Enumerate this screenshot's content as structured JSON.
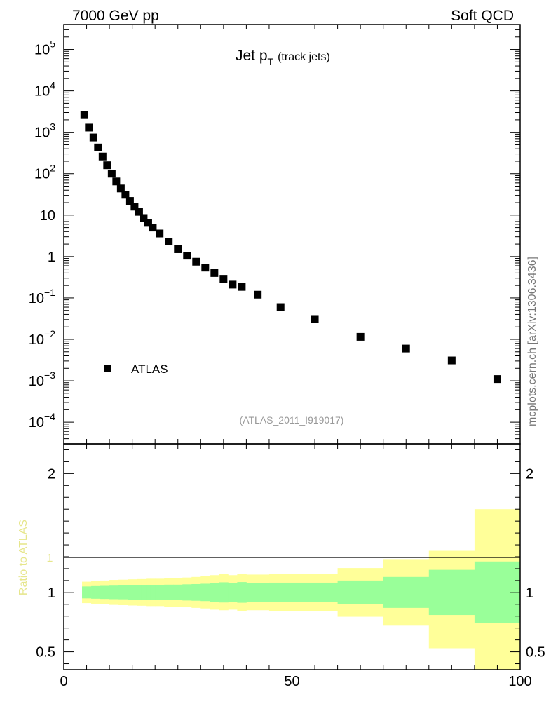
{
  "header": {
    "left_title": "7000 GeV pp",
    "right_title": "Soft QCD"
  },
  "main_panel": {
    "title_main": "Jet p",
    "title_sub": "T",
    "title_paren": "(track jets)",
    "analysis_id": "(ATLAS_2011_I919017)",
    "side_credit": "mcplots.cern.ch [arXiv:1306.3436]"
  },
  "ratio_panel": {
    "ylabel": "Ratio to ATLAS",
    "ref_line_label": "1"
  },
  "colors": {
    "marker": "#000000",
    "band_outer": "#ffff99",
    "band_inner": "#99ff99",
    "ratio_label": "#e6e68c",
    "analysis_text": "#999999",
    "credit_text": "#777777"
  },
  "chart_data": [
    {
      "type": "scatter",
      "yscale": "log",
      "xlim": [
        0,
        100
      ],
      "ylim": [
        3e-05,
        400000
      ],
      "ytick_labels": [
        "10^-4",
        "10^-3",
        "10^-2",
        "10^-1",
        "1",
        "10",
        "10^2",
        "10^3",
        "10^4",
        "10^5"
      ],
      "series": [
        {
          "name": "ATLAS",
          "x": [
            4.5,
            5.5,
            6.5,
            7.5,
            8.5,
            9.5,
            10.5,
            11.5,
            12.5,
            13.5,
            14.5,
            15.5,
            16.5,
            17.5,
            18.5,
            19.5,
            21,
            23,
            25,
            27,
            29,
            31,
            33,
            35,
            37,
            39,
            42.5,
            47.5,
            55,
            65,
            75,
            85,
            95
          ],
          "y": [
            2600,
            1300,
            750,
            430,
            260,
            160,
            100,
            65,
            44,
            31,
            22,
            16,
            12,
            8.5,
            6.5,
            5,
            3.6,
            2.3,
            1.5,
            1.05,
            0.75,
            0.54,
            0.4,
            0.29,
            0.21,
            0.185,
            0.12,
            0.06,
            0.031,
            0.0115,
            0.006,
            0.0031,
            0.0011
          ]
        }
      ]
    },
    {
      "type": "area",
      "xlim": [
        0,
        100
      ],
      "ylim": [
        0.35,
        2.25
      ],
      "ytick_labels": [
        "0.5",
        "1",
        "2"
      ],
      "xtick_labels": [
        "0",
        "50",
        "100"
      ],
      "reference_line": 1,
      "bins": [
        {
          "lo": 4,
          "hi": 5,
          "outer": [
            0.91,
            1.09
          ],
          "inner": [
            0.95,
            1.05
          ]
        },
        {
          "lo": 5,
          "hi": 6,
          "outer": [
            0.91,
            1.09
          ],
          "inner": [
            0.95,
            1.05
          ]
        },
        {
          "lo": 6,
          "hi": 7,
          "outer": [
            0.905,
            1.095
          ],
          "inner": [
            0.947,
            1.053
          ]
        },
        {
          "lo": 7,
          "hi": 8,
          "outer": [
            0.905,
            1.095
          ],
          "inner": [
            0.947,
            1.053
          ]
        },
        {
          "lo": 8,
          "hi": 9,
          "outer": [
            0.9,
            1.1
          ],
          "inner": [
            0.945,
            1.055
          ]
        },
        {
          "lo": 9,
          "hi": 10,
          "outer": [
            0.9,
            1.1
          ],
          "inner": [
            0.945,
            1.055
          ]
        },
        {
          "lo": 10,
          "hi": 11,
          "outer": [
            0.895,
            1.105
          ],
          "inner": [
            0.943,
            1.057
          ]
        },
        {
          "lo": 11,
          "hi": 12,
          "outer": [
            0.895,
            1.105
          ],
          "inner": [
            0.943,
            1.057
          ]
        },
        {
          "lo": 12,
          "hi": 13,
          "outer": [
            0.893,
            1.107
          ],
          "inner": [
            0.942,
            1.058
          ]
        },
        {
          "lo": 13,
          "hi": 14,
          "outer": [
            0.893,
            1.107
          ],
          "inner": [
            0.942,
            1.058
          ]
        },
        {
          "lo": 14,
          "hi": 15,
          "outer": [
            0.89,
            1.11
          ],
          "inner": [
            0.94,
            1.06
          ]
        },
        {
          "lo": 15,
          "hi": 16,
          "outer": [
            0.89,
            1.11
          ],
          "inner": [
            0.94,
            1.06
          ]
        },
        {
          "lo": 16,
          "hi": 17,
          "outer": [
            0.888,
            1.112
          ],
          "inner": [
            0.938,
            1.062
          ]
        },
        {
          "lo": 17,
          "hi": 18,
          "outer": [
            0.888,
            1.112
          ],
          "inner": [
            0.938,
            1.062
          ]
        },
        {
          "lo": 18,
          "hi": 19,
          "outer": [
            0.885,
            1.115
          ],
          "inner": [
            0.936,
            1.064
          ]
        },
        {
          "lo": 19,
          "hi": 20,
          "outer": [
            0.885,
            1.115
          ],
          "inner": [
            0.936,
            1.064
          ]
        },
        {
          "lo": 20,
          "hi": 22,
          "outer": [
            0.885,
            1.115
          ],
          "inner": [
            0.936,
            1.064
          ]
        },
        {
          "lo": 22,
          "hi": 24,
          "outer": [
            0.88,
            1.12
          ],
          "inner": [
            0.935,
            1.065
          ]
        },
        {
          "lo": 24,
          "hi": 26,
          "outer": [
            0.88,
            1.12
          ],
          "inner": [
            0.935,
            1.065
          ]
        },
        {
          "lo": 26,
          "hi": 28,
          "outer": [
            0.875,
            1.125
          ],
          "inner": [
            0.932,
            1.068
          ]
        },
        {
          "lo": 28,
          "hi": 30,
          "outer": [
            0.87,
            1.13
          ],
          "inner": [
            0.93,
            1.07
          ]
        },
        {
          "lo": 30,
          "hi": 32,
          "outer": [
            0.865,
            1.135
          ],
          "inner": [
            0.927,
            1.073
          ]
        },
        {
          "lo": 32,
          "hi": 34,
          "outer": [
            0.855,
            1.145
          ],
          "inner": [
            0.92,
            1.08
          ]
        },
        {
          "lo": 34,
          "hi": 36,
          "outer": [
            0.85,
            1.155
          ],
          "inner": [
            0.915,
            1.085
          ]
        },
        {
          "lo": 36,
          "hi": 38,
          "outer": [
            0.855,
            1.145
          ],
          "inner": [
            0.92,
            1.08
          ]
        },
        {
          "lo": 38,
          "hi": 40,
          "outer": [
            0.845,
            1.155
          ],
          "inner": [
            0.913,
            1.087
          ]
        },
        {
          "lo": 40,
          "hi": 45,
          "outer": [
            0.85,
            1.15
          ],
          "inner": [
            0.92,
            1.08
          ]
        },
        {
          "lo": 45,
          "hi": 50,
          "outer": [
            0.845,
            1.155
          ],
          "inner": [
            0.918,
            1.082
          ]
        },
        {
          "lo": 50,
          "hi": 60,
          "outer": [
            0.845,
            1.155
          ],
          "inner": [
            0.918,
            1.082
          ]
        },
        {
          "lo": 60,
          "hi": 70,
          "outer": [
            0.795,
            1.205
          ],
          "inner": [
            0.9,
            1.1
          ]
        },
        {
          "lo": 70,
          "hi": 80,
          "outer": [
            0.72,
            1.28
          ],
          "inner": [
            0.87,
            1.13
          ]
        },
        {
          "lo": 80,
          "hi": 90,
          "outer": [
            0.53,
            1.35
          ],
          "inner": [
            0.81,
            1.19
          ]
        },
        {
          "lo": 90,
          "hi": 100,
          "outer": [
            0.3,
            1.7
          ],
          "inner": [
            0.74,
            1.26
          ]
        }
      ]
    }
  ]
}
